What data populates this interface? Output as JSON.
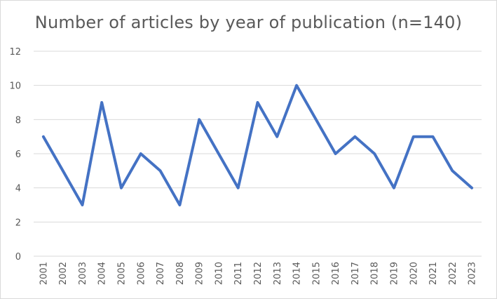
{
  "chart_data": {
    "type": "line",
    "title": "Number of articles by year of publication (n=140)",
    "xlabel": "",
    "ylabel": "",
    "ylim": [
      0,
      12
    ],
    "y_ticks": [
      0,
      2,
      4,
      6,
      8,
      10,
      12
    ],
    "grid": "horizontal",
    "legend": "none",
    "categories": [
      "2001",
      "2002",
      "2003",
      "2004",
      "2005",
      "2006",
      "2007",
      "2008",
      "2009",
      "2010",
      "2011",
      "2012",
      "2013",
      "2014",
      "2015",
      "2016",
      "2017",
      "2018",
      "2019",
      "2020",
      "2021",
      "2022",
      "2023"
    ],
    "series": [
      {
        "values": [
          7,
          5,
          3,
          9,
          4,
          6,
          5,
          3,
          8,
          6,
          4,
          9,
          7,
          10,
          8,
          6,
          7,
          6,
          4,
          7,
          7,
          5,
          4
        ],
        "color": "#4472c4"
      }
    ],
    "colors": {
      "grid": "#d9d9d9",
      "text": "#595959",
      "line": "#4472c4"
    }
  }
}
